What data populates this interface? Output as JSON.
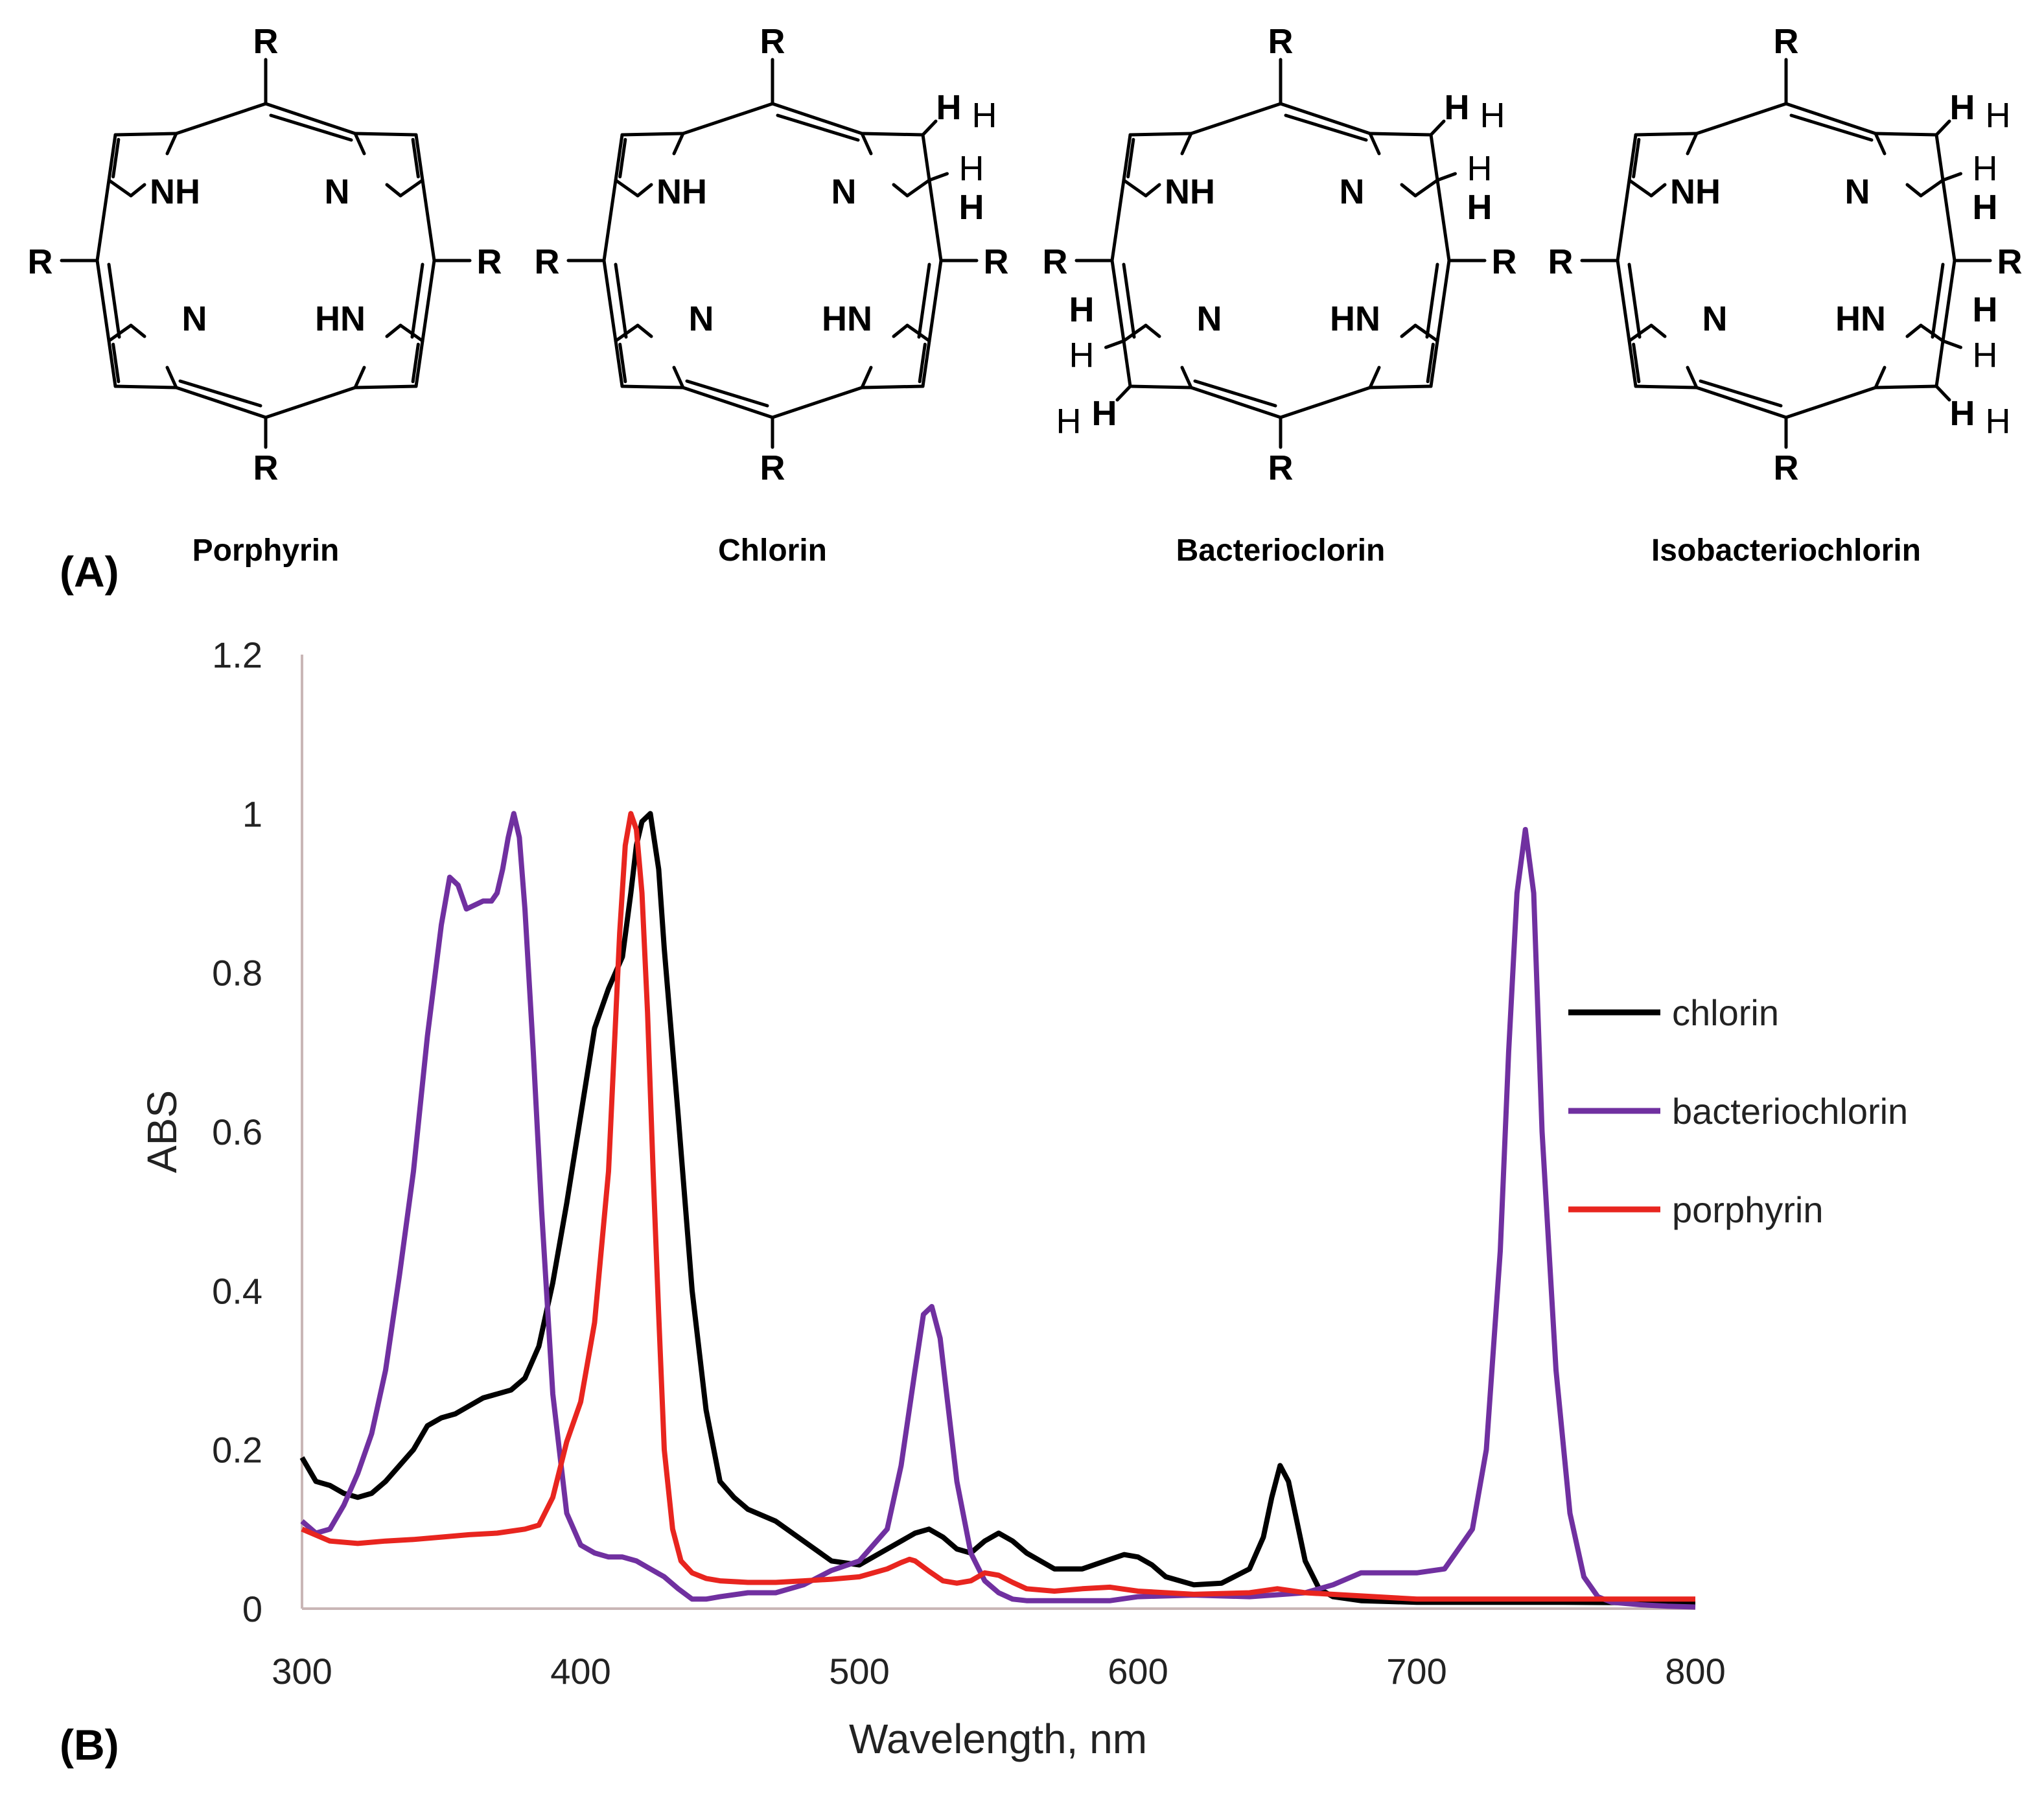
{
  "panels": {
    "a_label": "(A)",
    "b_label": "(B)"
  },
  "molecules": [
    {
      "name": "Porphyrin",
      "reduced": []
    },
    {
      "name": "Chlorin",
      "reduced": [
        "tr"
      ]
    },
    {
      "name": "Bacterioclorin",
      "reduced": [
        "tr",
        "bl"
      ]
    },
    {
      "name": "Isobacteriochlorin",
      "reduced": [
        "tr",
        "br"
      ]
    }
  ],
  "atom_labels": {
    "nh": "NH",
    "n": "N",
    "hn": "HN",
    "r": "R",
    "h": "H"
  },
  "chart_data": {
    "type": "line",
    "xlabel": "Wavelength, nm",
    "ylabel": "ABS",
    "xlim": [
      300,
      800
    ],
    "ylim": [
      0,
      1.2
    ],
    "xticks": [
      300,
      400,
      500,
      600,
      700,
      800
    ],
    "yticks": [
      0,
      0.2,
      0.4,
      0.6,
      0.8,
      1,
      1.2
    ],
    "ytick_labels": [
      "0",
      "0.2",
      "0.4",
      "0.6",
      "0.8",
      "1",
      "1.2"
    ],
    "grid": false,
    "legend_position": "right",
    "series": [
      {
        "name": "chlorin",
        "color": "#000000",
        "x": [
          300,
          305,
          310,
          315,
          320,
          325,
          330,
          335,
          340,
          345,
          350,
          355,
          360,
          365,
          370,
          375,
          380,
          385,
          390,
          395,
          400,
          405,
          410,
          415,
          418,
          420,
          422,
          425,
          428,
          430,
          435,
          440,
          445,
          450,
          455,
          460,
          470,
          480,
          490,
          500,
          510,
          520,
          525,
          530,
          535,
          540,
          545,
          550,
          555,
          560,
          570,
          580,
          590,
          595,
          600,
          605,
          610,
          620,
          630,
          640,
          645,
          648,
          651,
          654,
          657,
          660,
          665,
          670,
          680,
          700,
          750,
          800
        ],
        "y": [
          0.19,
          0.16,
          0.155,
          0.145,
          0.14,
          0.145,
          0.16,
          0.18,
          0.2,
          0.23,
          0.24,
          0.245,
          0.255,
          0.265,
          0.27,
          0.275,
          0.29,
          0.33,
          0.41,
          0.51,
          0.62,
          0.73,
          0.78,
          0.82,
          0.9,
          0.96,
          0.99,
          1.0,
          0.93,
          0.83,
          0.62,
          0.4,
          0.25,
          0.16,
          0.14,
          0.125,
          0.11,
          0.085,
          0.06,
          0.055,
          0.075,
          0.095,
          0.1,
          0.09,
          0.075,
          0.07,
          0.085,
          0.095,
          0.085,
          0.07,
          0.05,
          0.05,
          0.062,
          0.068,
          0.065,
          0.055,
          0.04,
          0.03,
          0.032,
          0.05,
          0.09,
          0.14,
          0.18,
          0.16,
          0.11,
          0.06,
          0.025,
          0.015,
          0.01,
          0.008,
          0.008,
          0.007
        ]
      },
      {
        "name": "bacteriochlorin",
        "color": "#7030a0",
        "x": [
          300,
          305,
          310,
          315,
          320,
          325,
          330,
          335,
          340,
          345,
          350,
          353,
          356,
          359,
          362,
          365,
          368,
          370,
          372,
          374,
          376,
          378,
          380,
          383,
          386,
          390,
          395,
          400,
          405,
          410,
          415,
          420,
          425,
          430,
          435,
          440,
          445,
          450,
          460,
          470,
          480,
          490,
          500,
          510,
          515,
          520,
          523,
          526,
          529,
          532,
          535,
          540,
          545,
          550,
          555,
          560,
          570,
          580,
          590,
          600,
          620,
          640,
          660,
          670,
          680,
          690,
          700,
          710,
          720,
          725,
          730,
          733,
          736,
          739,
          742,
          745,
          750,
          755,
          760,
          765,
          770,
          780,
          790,
          800
        ],
        "y": [
          0.11,
          0.095,
          0.1,
          0.13,
          0.17,
          0.22,
          0.3,
          0.42,
          0.55,
          0.72,
          0.86,
          0.92,
          0.91,
          0.88,
          0.885,
          0.89,
          0.89,
          0.9,
          0.93,
          0.97,
          1.0,
          0.97,
          0.88,
          0.7,
          0.5,
          0.27,
          0.12,
          0.08,
          0.07,
          0.065,
          0.065,
          0.06,
          0.05,
          0.04,
          0.025,
          0.012,
          0.012,
          0.015,
          0.02,
          0.02,
          0.03,
          0.048,
          0.06,
          0.1,
          0.18,
          0.3,
          0.37,
          0.38,
          0.34,
          0.25,
          0.16,
          0.07,
          0.035,
          0.02,
          0.012,
          0.01,
          0.01,
          0.01,
          0.01,
          0.015,
          0.017,
          0.015,
          0.02,
          0.03,
          0.045,
          0.045,
          0.045,
          0.05,
          0.1,
          0.2,
          0.45,
          0.7,
          0.9,
          0.98,
          0.9,
          0.6,
          0.3,
          0.12,
          0.04,
          0.015,
          0.008,
          0.005,
          0.003,
          0.002
        ]
      },
      {
        "name": "porphyrin",
        "color": "#e8251f",
        "x": [
          300,
          310,
          320,
          330,
          340,
          350,
          360,
          370,
          380,
          385,
          390,
          395,
          400,
          405,
          410,
          412,
          414,
          416,
          418,
          420,
          422,
          424,
          426,
          428,
          430,
          433,
          436,
          440,
          445,
          450,
          460,
          470,
          480,
          490,
          500,
          510,
          515,
          518,
          520,
          525,
          530,
          535,
          540,
          545,
          550,
          555,
          560,
          570,
          580,
          590,
          600,
          620,
          640,
          650,
          660,
          700,
          750,
          800
        ],
        "y": [
          0.1,
          0.085,
          0.082,
          0.085,
          0.087,
          0.09,
          0.093,
          0.095,
          0.1,
          0.105,
          0.14,
          0.21,
          0.26,
          0.36,
          0.55,
          0.7,
          0.85,
          0.96,
          1.0,
          0.98,
          0.9,
          0.75,
          0.55,
          0.37,
          0.2,
          0.1,
          0.06,
          0.045,
          0.038,
          0.035,
          0.033,
          0.033,
          0.035,
          0.037,
          0.04,
          0.05,
          0.058,
          0.062,
          0.06,
          0.047,
          0.035,
          0.032,
          0.035,
          0.045,
          0.042,
          0.033,
          0.025,
          0.022,
          0.025,
          0.027,
          0.022,
          0.018,
          0.02,
          0.025,
          0.02,
          0.012,
          0.012,
          0.012
        ]
      }
    ]
  }
}
